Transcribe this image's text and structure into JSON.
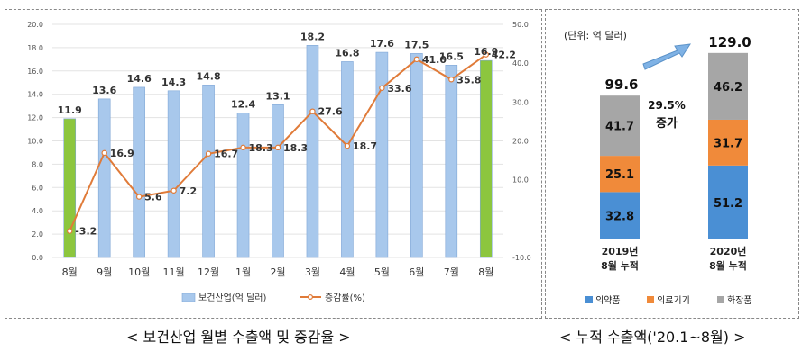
{
  "chart_data": [
    {
      "type": "bar",
      "categories": [
        "8월",
        "9월",
        "10월",
        "11월",
        "12월",
        "1월",
        "2월",
        "3월",
        "4월",
        "5월",
        "6월",
        "7월",
        "8월"
      ],
      "series": [
        {
          "name": "보건산업(억 달러)",
          "type": "bar",
          "axis": "left",
          "values": [
            11.9,
            13.6,
            14.6,
            14.3,
            14.8,
            12.4,
            13.1,
            18.2,
            16.8,
            17.6,
            17.5,
            16.5,
            16.9
          ],
          "colors": [
            "#8cc63e",
            "#a8c8ec",
            "#a8c8ec",
            "#a8c8ec",
            "#a8c8ec",
            "#a8c8ec",
            "#a8c8ec",
            "#a8c8ec",
            "#a8c8ec",
            "#a8c8ec",
            "#a8c8ec",
            "#a8c8ec",
            "#8cc63e"
          ]
        },
        {
          "name": "증감률(%)",
          "type": "line",
          "axis": "right",
          "color": "#e07b39",
          "values": [
            -3.2,
            16.9,
            5.6,
            7.2,
            16.7,
            18.3,
            18.3,
            27.6,
            18.7,
            33.6,
            41.0,
            35.8,
            42.2
          ]
        }
      ],
      "left_axis": {
        "ylim": [
          0,
          20
        ],
        "ticks": [
          "0.0",
          "2.0",
          "4.0",
          "6.0",
          "8.0",
          "10.0",
          "12.0",
          "14.0",
          "16.0",
          "18.0",
          "20.0"
        ]
      },
      "right_axis": {
        "ylim": [
          -10,
          50
        ],
        "ticks": [
          "-10.0",
          "",
          "10.0",
          "20.0",
          "30.0",
          "40.0",
          "50.0"
        ]
      },
      "grid": true,
      "legend_position": "bottom"
    },
    {
      "type": "bar",
      "stacked": true,
      "unit_label": "(단위: 억 달러)",
      "categories": [
        "2019년\n8월 누적",
        "2020년\n8월 누적"
      ],
      "totals": [
        99.6,
        129.0
      ],
      "series": [
        {
          "name": "의약품",
          "color": "#4a8fd4",
          "values": [
            32.8,
            51.2
          ]
        },
        {
          "name": "의료기기",
          "color": "#f08a3a",
          "values": [
            25.1,
            31.7
          ]
        },
        {
          "name": "화장품",
          "color": "#a6a6a6",
          "values": [
            41.7,
            46.2
          ]
        }
      ],
      "growth_annotation": [
        "29.5%",
        "증가"
      ],
      "legend_position": "bottom"
    }
  ],
  "labels": {
    "left_chart": {
      "bar_labels": [
        "11.9",
        "13.6",
        "14.6",
        "14.3",
        "14.8",
        "12.4",
        "13.1",
        "18.2",
        "16.8",
        "17.6",
        "17.5",
        "16.5",
        "16.9"
      ],
      "line_labels": [
        "-3.2",
        "16.9",
        "5.6",
        "7.2",
        "16.7",
        "18.3",
        "18.3",
        "27.6",
        "18.7",
        "33.6",
        "41.0",
        "35.8",
        "42.2"
      ]
    },
    "right_chart": {
      "total_labels": [
        "99.6",
        "129.0"
      ],
      "segment_labels": [
        [
          "32.8",
          "25.1",
          "41.7"
        ],
        [
          "51.2",
          "31.7",
          "46.2"
        ]
      ],
      "category_lines": [
        [
          "2019년",
          "8월 누적"
        ],
        [
          "2020년",
          "8월 누적"
        ]
      ]
    }
  },
  "captions": {
    "left": "< 보건산업 월별 수출액 및 증감율 >",
    "right": "< 누적 수출액('20.1~8월) >"
  }
}
